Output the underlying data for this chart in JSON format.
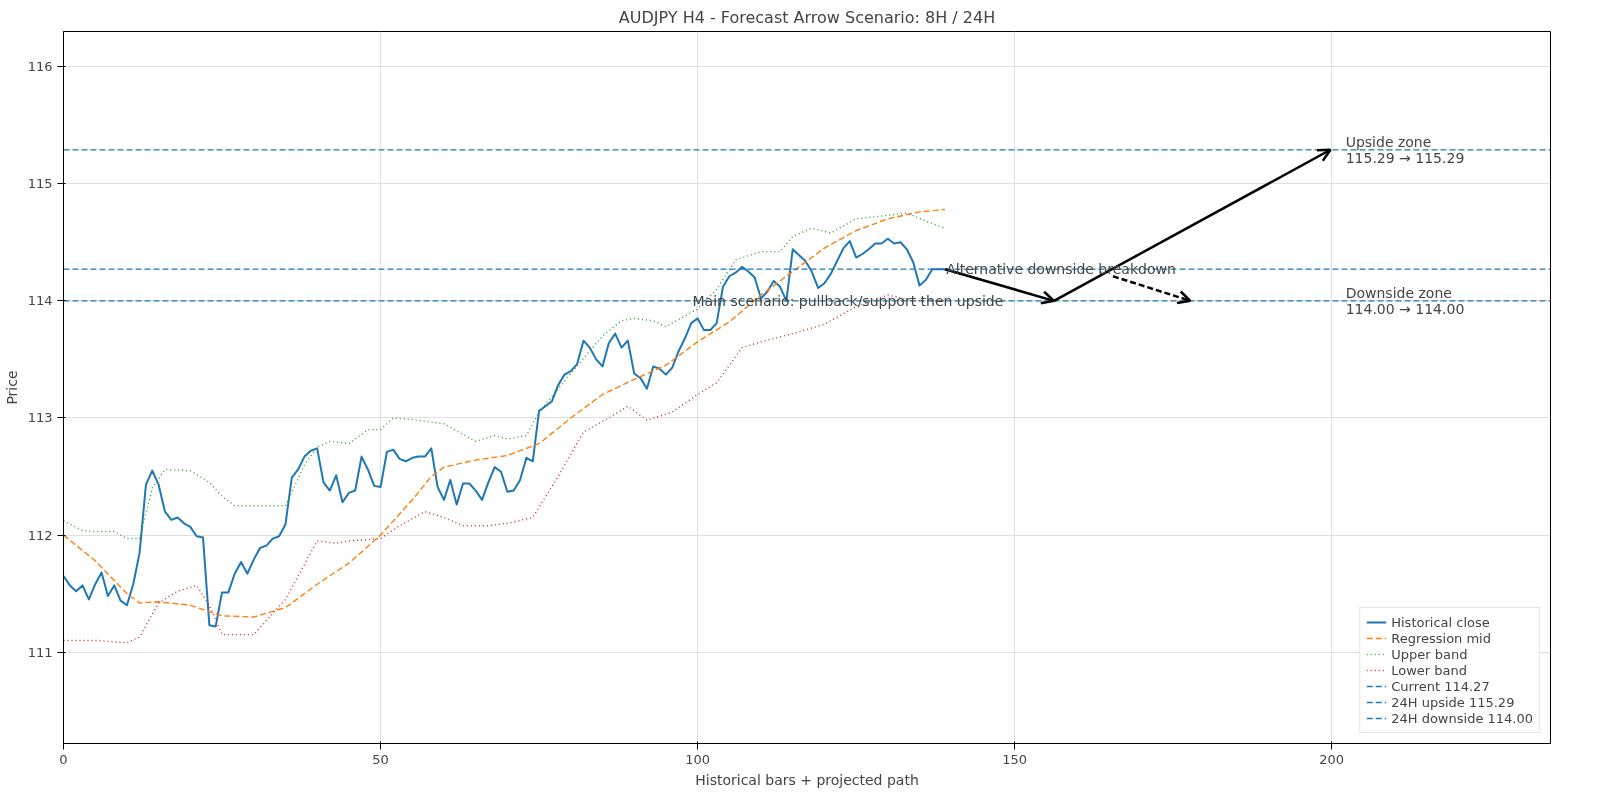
{
  "chart_data": {
    "type": "line",
    "title": "AUDJPY H4 - Forecast Arrow Scenario: 8H / 24H",
    "xlabel": "Historical bars + projected path",
    "ylabel": "Price",
    "xlim": [
      0,
      234.5
    ],
    "ylim": [
      110.22,
      116.3
    ],
    "xticks": [
      0,
      50,
      100,
      150,
      200
    ],
    "yticks": [
      111,
      112,
      113,
      114,
      115,
      116
    ],
    "grid": true,
    "legend": "bottom right",
    "marker": "none",
    "series": [
      {
        "name": "Historical close",
        "color": "#1f77b4",
        "line_style": "solid",
        "x": [
          0,
          1,
          2,
          3,
          4,
          5,
          6,
          7,
          8,
          9,
          10,
          11,
          12,
          13,
          14,
          15,
          16,
          17,
          18,
          19,
          20,
          21,
          22,
          23,
          24,
          25,
          26,
          27,
          28,
          29,
          30,
          31,
          32,
          33,
          34,
          35,
          36,
          37,
          38,
          39,
          40,
          41,
          42,
          43,
          44,
          45,
          46,
          47,
          48,
          49,
          50,
          51,
          52,
          53,
          54,
          55,
          56,
          57,
          58,
          59,
          60,
          61,
          62,
          63,
          64,
          65,
          66,
          67,
          68,
          69,
          70,
          71,
          72,
          73,
          74,
          75,
          76,
          77,
          78,
          79,
          80,
          81,
          82,
          83,
          84,
          85,
          86,
          87,
          88,
          89,
          90,
          91,
          92,
          93,
          94,
          95,
          96,
          97,
          98,
          99,
          100,
          101,
          102,
          103,
          104,
          105,
          106,
          107,
          108,
          109,
          110,
          111,
          112,
          113,
          114,
          115,
          116,
          117,
          118,
          119,
          120,
          121,
          122,
          123,
          124,
          125,
          126,
          127,
          128,
          129,
          130,
          131,
          132,
          133,
          134,
          135,
          136,
          137,
          138,
          139
        ],
        "values": [
          111.65,
          111.57,
          111.52,
          111.57,
          111.45,
          111.58,
          111.68,
          111.48,
          111.57,
          111.44,
          111.4,
          111.58,
          111.85,
          112.43,
          112.55,
          112.43,
          112.2,
          112.13,
          112.15,
          112.1,
          112.07,
          111.99,
          111.98,
          111.23,
          111.22,
          111.51,
          111.51,
          111.67,
          111.77,
          111.67,
          111.79,
          111.89,
          111.91,
          111.97,
          111.99,
          112.09,
          112.49,
          112.56,
          112.67,
          112.72,
          112.74,
          112.45,
          112.38,
          112.51,
          112.28,
          112.36,
          112.38,
          112.67,
          112.56,
          112.42,
          112.41,
          112.71,
          112.73,
          112.65,
          112.63,
          112.66,
          112.67,
          112.67,
          112.74,
          112.41,
          112.3,
          112.47,
          112.26,
          112.44,
          112.44,
          112.38,
          112.3,
          112.45,
          112.58,
          112.54,
          112.37,
          112.38,
          112.47,
          112.66,
          112.63,
          113.06,
          113.1,
          113.14,
          113.28,
          113.37,
          113.4,
          113.46,
          113.66,
          113.6,
          113.5,
          113.44,
          113.64,
          113.72,
          113.6,
          113.66,
          113.38,
          113.34,
          113.25,
          113.44,
          113.42,
          113.37,
          113.43,
          113.57,
          113.68,
          113.81,
          113.85,
          113.75,
          113.75,
          113.81,
          114.12,
          114.21,
          114.24,
          114.29,
          114.25,
          114.2,
          114.02,
          114.08,
          114.17,
          114.12,
          114.0,
          114.44,
          114.39,
          114.34,
          114.25,
          114.11,
          114.15,
          114.23,
          114.34,
          114.45,
          114.51,
          114.37,
          114.4,
          114.44,
          114.49,
          114.49,
          114.53,
          114.49,
          114.5,
          114.44,
          114.33,
          114.13,
          114.18,
          114.27,
          114.27,
          114.27
        ]
      },
      {
        "name": "Regression mid",
        "color": "#ff7f0e",
        "line_style": "dashed",
        "x": [
          0,
          5,
          10,
          12,
          15,
          20,
          25,
          30,
          35,
          40,
          45,
          50,
          55,
          58,
          60,
          65,
          70,
          75,
          80,
          85,
          90,
          95,
          100,
          105,
          110,
          115,
          120,
          125,
          130,
          135,
          139
        ],
        "values": [
          112.0,
          111.78,
          111.5,
          111.42,
          111.43,
          111.4,
          111.31,
          111.3,
          111.38,
          111.58,
          111.76,
          112.0,
          112.3,
          112.5,
          112.58,
          112.64,
          112.68,
          112.78,
          113.0,
          113.2,
          113.33,
          113.45,
          113.65,
          113.82,
          114.05,
          114.25,
          114.45,
          114.6,
          114.7,
          114.76,
          114.78
        ]
      },
      {
        "name": "Upper band",
        "color": "#2ca02c",
        "line_style": "dotted",
        "x": [
          0,
          3,
          5,
          8,
          10,
          12,
          14,
          16,
          20,
          23,
          25,
          27,
          30,
          35,
          38,
          40,
          42,
          45,
          48,
          50,
          52,
          56,
          60,
          65,
          68,
          70,
          73,
          75,
          80,
          85,
          88,
          90,
          93,
          95,
          100,
          103,
          106,
          110,
          113,
          115,
          118,
          121,
          125,
          130,
          133,
          136,
          139
        ],
        "values": [
          112.12,
          112.04,
          112.03,
          112.03,
          111.97,
          111.97,
          112.4,
          112.56,
          112.55,
          112.45,
          112.33,
          112.25,
          112.25,
          112.25,
          112.6,
          112.75,
          112.8,
          112.78,
          112.9,
          112.9,
          113.0,
          112.98,
          112.95,
          112.8,
          112.85,
          112.82,
          112.85,
          113.05,
          113.38,
          113.7,
          113.83,
          113.85,
          113.83,
          113.78,
          113.93,
          114.1,
          114.35,
          114.42,
          114.42,
          114.55,
          114.62,
          114.58,
          114.7,
          114.73,
          114.75,
          114.68,
          114.62
        ]
      },
      {
        "name": "Lower band",
        "color": "#d62728",
        "line_style": "dotted",
        "x": [
          0,
          5,
          10,
          12,
          15,
          18,
          21,
          23,
          25,
          30,
          35,
          40,
          43,
          45,
          50,
          53,
          57,
          60,
          63,
          67,
          70,
          74,
          78,
          82,
          86,
          89,
          92,
          96,
          100,
          103,
          107,
          110,
          115,
          120,
          125,
          130,
          134,
          139
        ],
        "values": [
          111.1,
          111.1,
          111.08,
          111.13,
          111.42,
          111.52,
          111.57,
          111.4,
          111.15,
          111.15,
          111.45,
          111.95,
          111.93,
          111.95,
          111.97,
          112.08,
          112.2,
          112.15,
          112.08,
          112.08,
          112.1,
          112.15,
          112.5,
          112.88,
          113.0,
          113.1,
          112.98,
          113.05,
          113.2,
          113.3,
          113.6,
          113.65,
          113.72,
          113.8,
          113.95,
          114.05,
          114.0,
          114.0
        ]
      },
      {
        "color": "#000000",
        "line_style": "solid",
        "x": [
          139,
          156.2,
          199.8
        ],
        "values": [
          114.27,
          114.0,
          115.29
        ]
      },
      {
        "color": "#000000",
        "line_style": "dashed",
        "x": [
          165.5,
          177.7
        ],
        "values": [
          114.21,
          114.0
        ]
      }
    ],
    "ref_lines": [
      {
        "axis": "y",
        "value": 114.27,
        "label": "Current 114.27",
        "color": "#1f77b4",
        "line_style": "dashed"
      },
      {
        "axis": "y",
        "value": 115.29,
        "label": "24H upside 115.29",
        "color": "#1f77b4",
        "line_style": "dashed"
      },
      {
        "axis": "y",
        "value": 114.0,
        "label": "24H downside 114.00",
        "color": "#1f77b4",
        "line_style": "dashed"
      }
    ],
    "annotations": [
      {
        "text": "Main scenario: pullback/support then upside",
        "x": 99.2,
        "y": 114.0
      },
      {
        "text": "Alternative downside breakdown",
        "x": 139.2,
        "y": 114.27
      },
      {
        "text": "Upside zone\n115.29 → 115.29",
        "x": 202.2,
        "y": 115.29
      },
      {
        "text": "Downside zone\n114.00 → 114.00",
        "x": 202.2,
        "y": 114.0
      }
    ]
  }
}
